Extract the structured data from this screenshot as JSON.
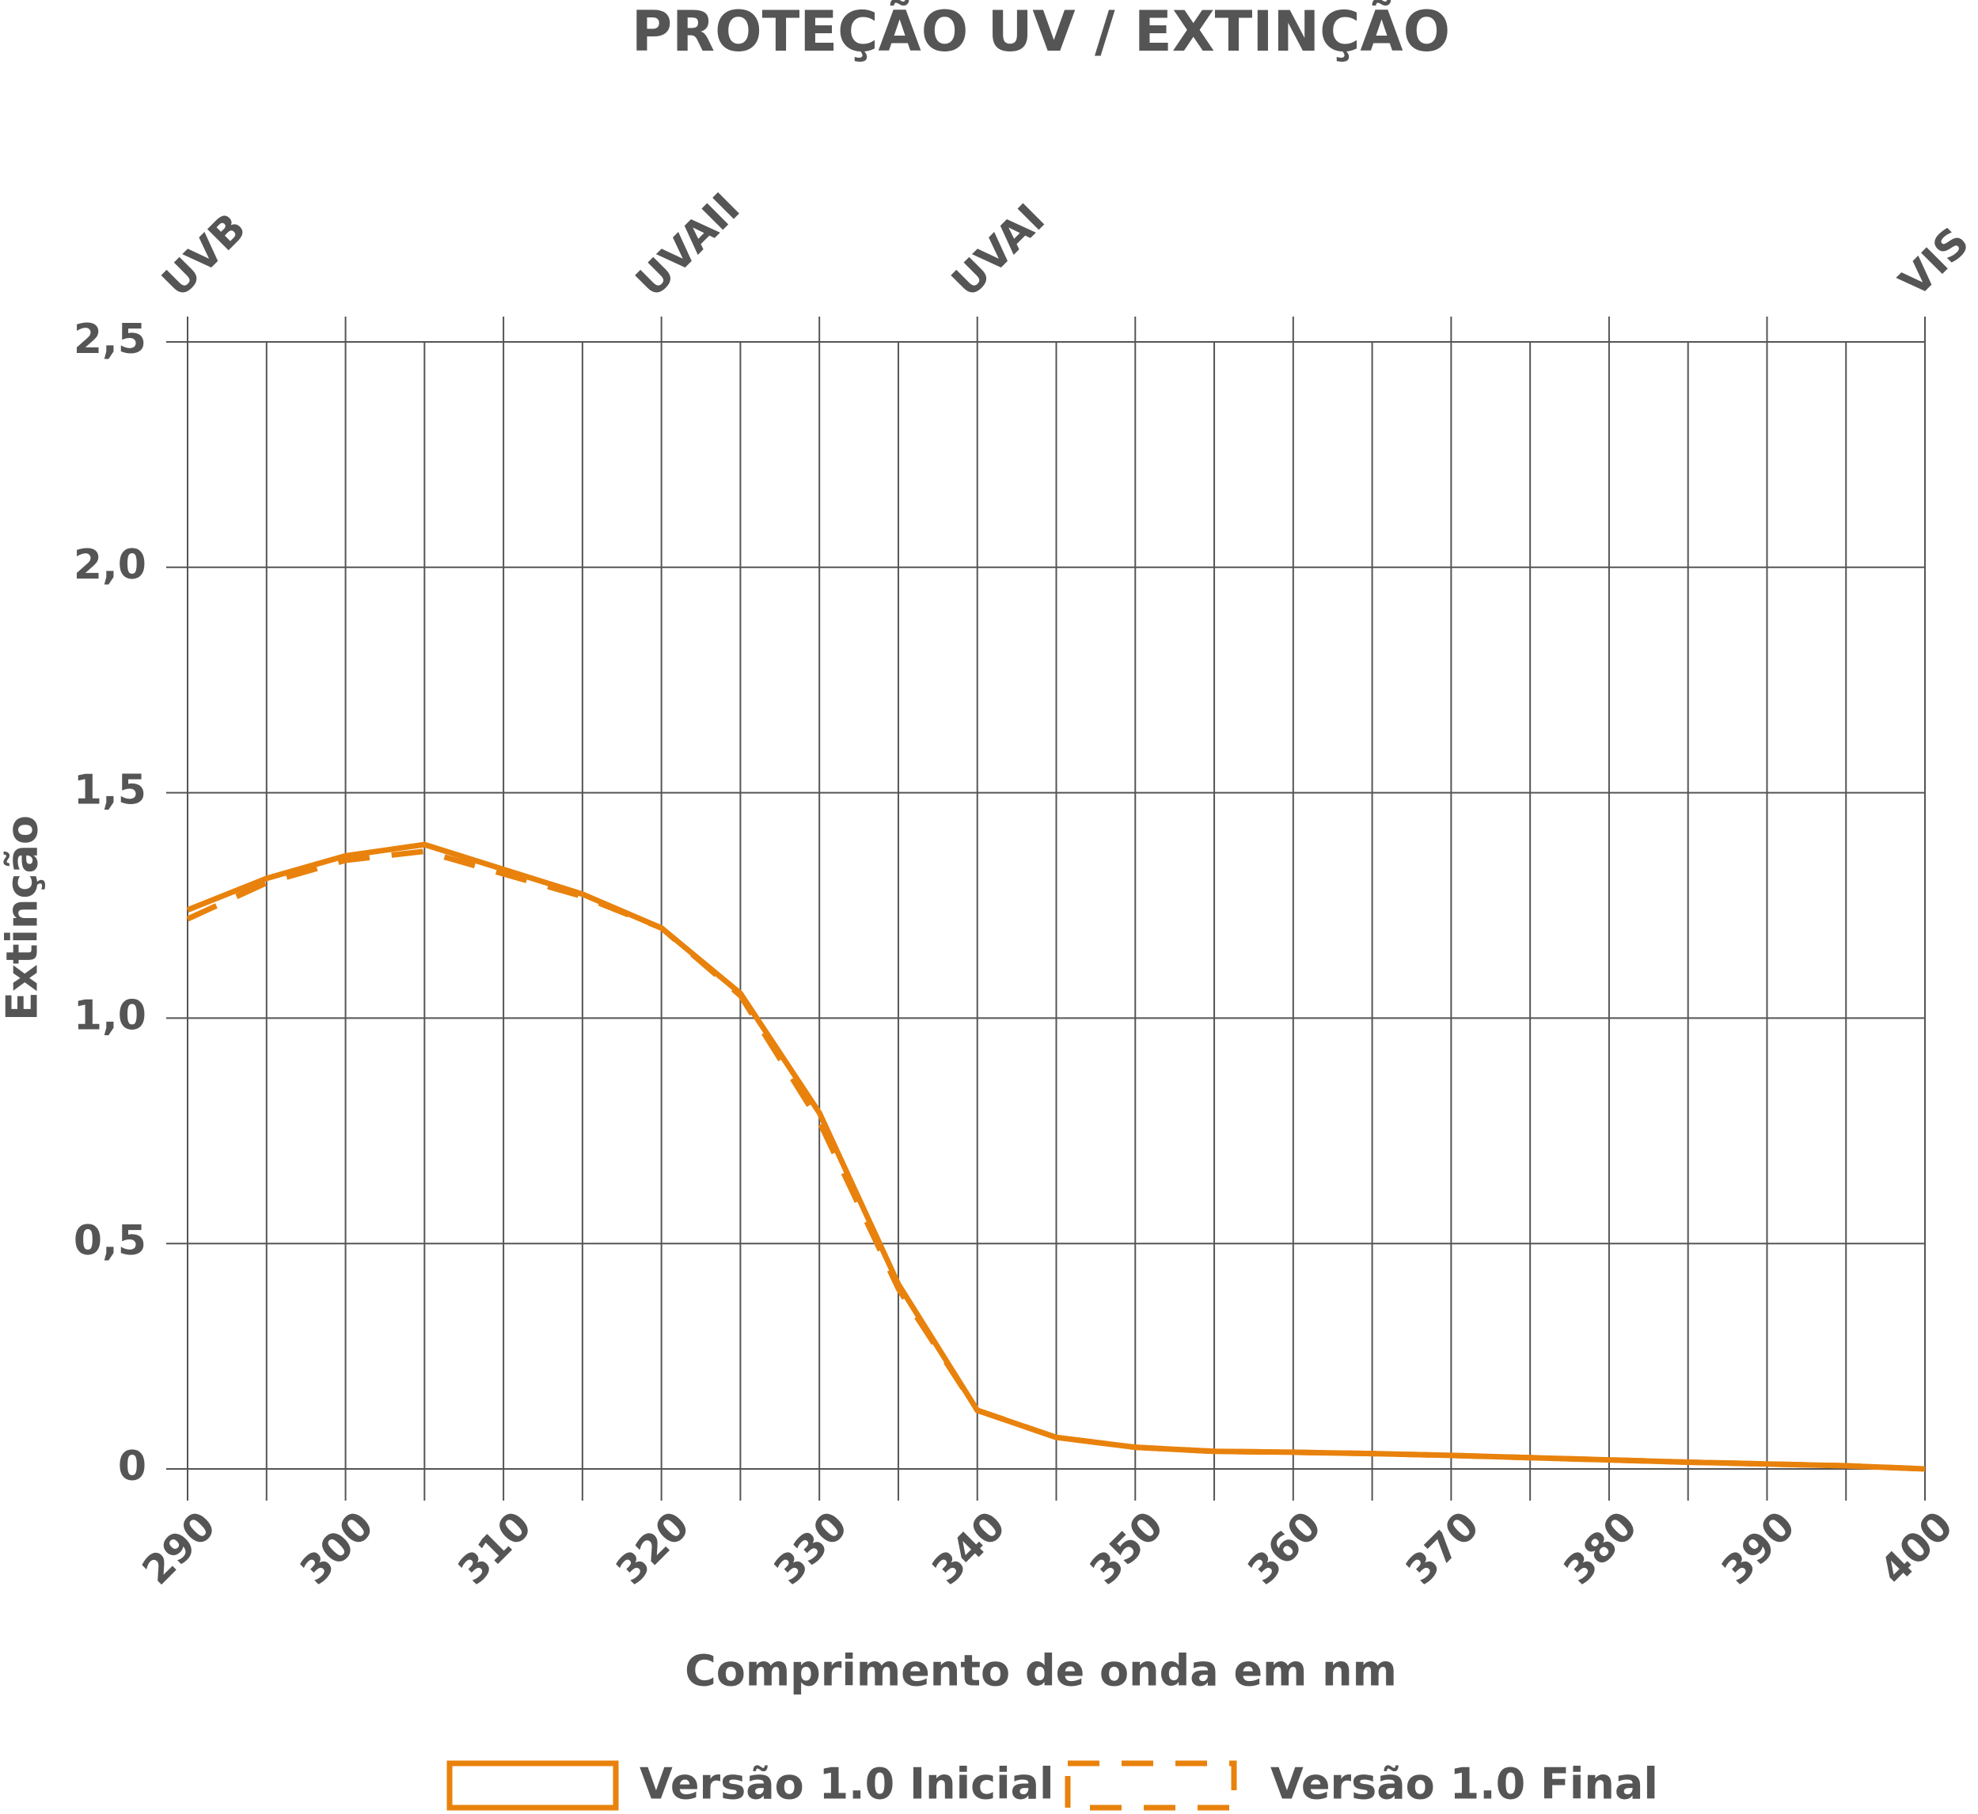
{
  "chart_data": {
    "type": "line",
    "title": "PROTEÇÃO UV / EXTINÇÃO",
    "x_label": "Comprimento de onda em nm",
    "y_label": "Extinção",
    "x": [
      290,
      295,
      300,
      305,
      310,
      315,
      320,
      325,
      330,
      335,
      340,
      345,
      350,
      355,
      360,
      365,
      370,
      375,
      380,
      385,
      390,
      395,
      400
    ],
    "series": [
      {
        "name": "Versão 1.0 Inicial",
        "color": "#e8820c",
        "dash": false,
        "values": [
          1.24,
          1.31,
          1.36,
          1.385,
          1.33,
          1.275,
          1.2,
          1.055,
          0.79,
          0.41,
          0.13,
          0.07,
          0.048,
          0.039,
          0.037,
          0.034,
          0.03,
          0.025,
          0.02,
          0.015,
          0.011,
          0.007,
          0.0
        ]
      },
      {
        "name": "Versão 1.0 Final",
        "color": "#e8820c",
        "dash": true,
        "values": [
          1.22,
          1.3,
          1.35,
          1.37,
          1.32,
          1.27,
          1.2,
          1.05,
          0.77,
          0.4,
          0.13,
          0.07,
          0.048,
          0.039,
          0.037,
          0.034,
          0.03,
          0.025,
          0.02,
          0.015,
          0.011,
          0.007,
          0.0
        ]
      }
    ],
    "xlim": [
      290,
      400
    ],
    "xticks": [
      290,
      300,
      310,
      320,
      330,
      340,
      350,
      360,
      370,
      380,
      390,
      400
    ],
    "x_minor_ticks": [
      295,
      305,
      315,
      325,
      335,
      345,
      355,
      365,
      375,
      385,
      395
    ],
    "ylim": [
      0,
      2.5
    ],
    "yticks": [
      0,
      {
        "value": 0.5,
        "label": "0,5"
      },
      {
        "value": 1.0,
        "label": "1,0"
      },
      {
        "value": 1.5,
        "label": "1,5"
      },
      {
        "value": 2.0,
        "label": "2,0"
      },
      {
        "value": 2.5,
        "label": "2,5"
      }
    ],
    "bands": [
      {
        "x": 290,
        "label": "UVB"
      },
      {
        "x": 320,
        "label": "UVAII"
      },
      {
        "x": 340,
        "label": "UVAI"
      },
      {
        "x": 400,
        "label": "VIS"
      }
    ],
    "grid": true
  }
}
